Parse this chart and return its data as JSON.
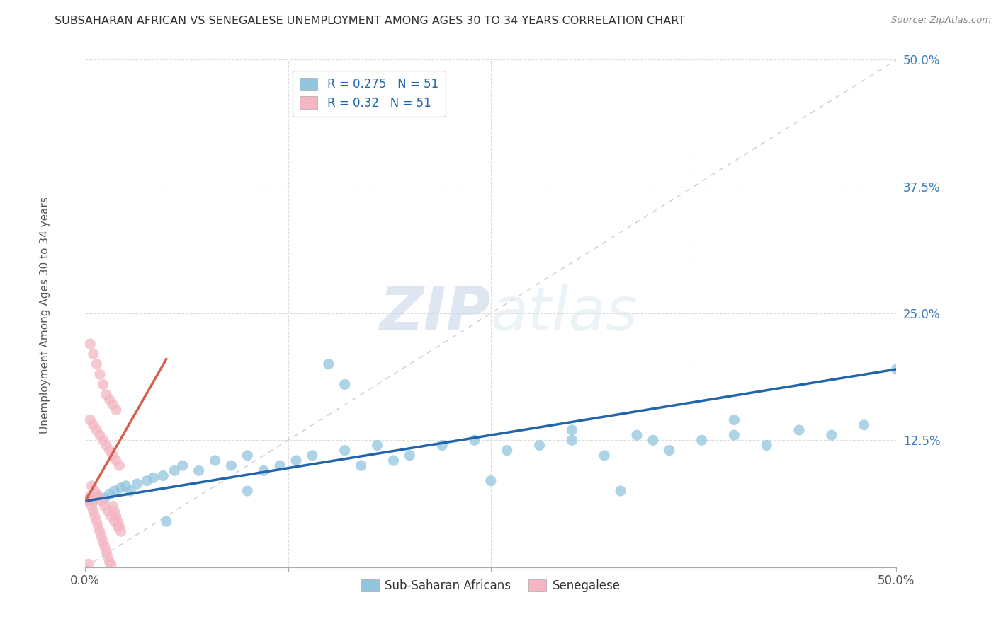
{
  "title": "SUBSAHARAN AFRICAN VS SENEGALESE UNEMPLOYMENT AMONG AGES 30 TO 34 YEARS CORRELATION CHART",
  "source": "Source: ZipAtlas.com",
  "xlim": [
    0.0,
    0.5
  ],
  "ylim": [
    0.0,
    0.5
  ],
  "r_blue": 0.275,
  "r_pink": 0.32,
  "n_blue": 51,
  "n_pink": 51,
  "blue_color": "#92c5de",
  "pink_color": "#f4b6c2",
  "trend_blue": "#2166ac",
  "trend_pink": "#d6604d",
  "legend_text_color": "#2166ac",
  "ylabel": "Unemployment Among Ages 30 to 34 years",
  "blue_scatter_x": [
    0.005,
    0.008,
    0.012,
    0.015,
    0.018,
    0.022,
    0.025,
    0.028,
    0.032,
    0.038,
    0.042,
    0.048,
    0.055,
    0.06,
    0.07,
    0.08,
    0.09,
    0.1,
    0.11,
    0.12,
    0.13,
    0.14,
    0.15,
    0.16,
    0.17,
    0.18,
    0.19,
    0.2,
    0.22,
    0.24,
    0.26,
    0.28,
    0.3,
    0.32,
    0.34,
    0.36,
    0.38,
    0.4,
    0.42,
    0.44,
    0.46,
    0.48,
    0.16,
    0.3,
    0.35,
    0.4,
    0.5,
    0.33,
    0.25,
    0.1,
    0.05
  ],
  "blue_scatter_y": [
    0.065,
    0.07,
    0.068,
    0.072,
    0.075,
    0.078,
    0.08,
    0.075,
    0.082,
    0.085,
    0.088,
    0.09,
    0.095,
    0.1,
    0.095,
    0.105,
    0.1,
    0.11,
    0.095,
    0.1,
    0.105,
    0.11,
    0.2,
    0.115,
    0.1,
    0.12,
    0.105,
    0.11,
    0.12,
    0.125,
    0.115,
    0.12,
    0.125,
    0.11,
    0.13,
    0.115,
    0.125,
    0.13,
    0.12,
    0.135,
    0.13,
    0.14,
    0.18,
    0.135,
    0.125,
    0.145,
    0.195,
    0.075,
    0.085,
    0.075,
    0.045
  ],
  "pink_scatter_x": [
    0.002,
    0.003,
    0.004,
    0.005,
    0.006,
    0.007,
    0.008,
    0.009,
    0.01,
    0.011,
    0.012,
    0.013,
    0.014,
    0.015,
    0.016,
    0.017,
    0.018,
    0.019,
    0.02,
    0.021,
    0.003,
    0.005,
    0.007,
    0.009,
    0.011,
    0.013,
    0.015,
    0.017,
    0.019,
    0.021,
    0.004,
    0.006,
    0.008,
    0.01,
    0.012,
    0.014,
    0.016,
    0.018,
    0.02,
    0.022,
    0.003,
    0.005,
    0.007,
    0.009,
    0.011,
    0.013,
    0.015,
    0.017,
    0.019,
    0.001,
    0.002
  ],
  "pink_scatter_y": [
    0.065,
    0.07,
    0.06,
    0.055,
    0.05,
    0.045,
    0.04,
    0.035,
    0.03,
    0.025,
    0.02,
    0.015,
    0.01,
    0.005,
    0.002,
    0.06,
    0.055,
    0.05,
    0.045,
    0.04,
    0.145,
    0.14,
    0.135,
    0.13,
    0.125,
    0.12,
    0.115,
    0.11,
    0.105,
    0.1,
    0.08,
    0.075,
    0.07,
    0.065,
    0.06,
    0.055,
    0.05,
    0.045,
    0.04,
    0.035,
    0.22,
    0.21,
    0.2,
    0.19,
    0.18,
    0.17,
    0.165,
    0.16,
    0.155,
    0.065,
    0.003
  ],
  "legend_blue_label": "Sub-Saharan Africans",
  "legend_pink_label": "Senegalese",
  "ytick_positions": [
    0.0,
    0.125,
    0.25,
    0.375,
    0.5
  ],
  "ytick_labels": [
    "",
    "12.5%",
    "25.0%",
    "37.5%",
    "50.0%"
  ],
  "xtick_positions": [
    0.0,
    0.125,
    0.25,
    0.375,
    0.5
  ],
  "xtick_labels": [
    "0.0%",
    "",
    "",
    "",
    "50.0%"
  ]
}
